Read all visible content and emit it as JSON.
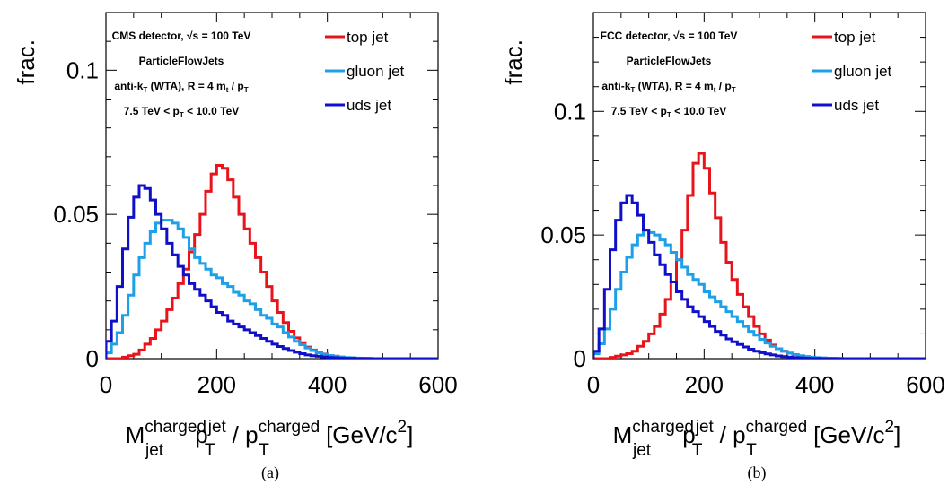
{
  "panels": [
    {
      "sublabel": "(a)",
      "info": {
        "line1_prefix": "CMS detector,  ",
        "sqrt": "√s",
        "line1_suffix": " = 100 TeV",
        "line2": "ParticleFlowJets",
        "line3_a": "anti-k",
        "line3_sub": "T",
        "line3_b": " (WTA), R = 4 m",
        "line3_sub2": "t",
        "line3_c": " / p",
        "line3_sub3": "T",
        "line4_a": "7.5 TeV < p",
        "line4_sub": "T",
        "line4_b": " < 10.0 TeV"
      }
    },
    {
      "sublabel": "(b)",
      "info": {
        "line1_prefix": "FCC detector,  ",
        "sqrt": "√s",
        "line1_suffix": " = 100 TeV",
        "line2": "ParticleFlowJets",
        "line3_a": "anti-k",
        "line3_sub": "T",
        "line3_b": " (WTA), R = 4 m",
        "line3_sub2": "t",
        "line3_c": " / p",
        "line3_sub3": "T",
        "line4_a": "7.5 TeV < p",
        "line4_sub": "T",
        "line4_b": " < 10.0 TeV"
      }
    }
  ],
  "xlabel": {
    "m": "M",
    "m_sup": "charged",
    "m_sub": "jet",
    "p": " p",
    "p_sup": "jet",
    "p_sub": "T",
    "slash": " / p",
    "p2_sup": "charged",
    "p2_sub": "T",
    "units_a": " [GeV/c",
    "units_sup": "2",
    "units_b": "]"
  },
  "colors": {
    "top": "#e8141c",
    "gluon": "#1ea0e8",
    "uds": "#1010c8"
  },
  "chart_data": [
    {
      "type": "line",
      "ylabel": "frac.",
      "xlim": [
        0,
        600
      ],
      "ylim": [
        0,
        0.12
      ],
      "xticks": [
        0,
        200,
        400,
        600
      ],
      "yticks": [
        0,
        0.05,
        0.1
      ],
      "ytick_labels": [
        "0",
        "0.05",
        "0.1"
      ],
      "legend_position": "top-right",
      "bin_width": 10,
      "series": [
        {
          "key": "top",
          "name": "top jet",
          "peak": 190,
          "values": [
            0,
            0,
            0,
            0.0005,
            0.001,
            0.0015,
            0.003,
            0.005,
            0.007,
            0.01,
            0.013,
            0.017,
            0.021,
            0.026,
            0.031,
            0.037,
            0.043,
            0.05,
            0.058,
            0.064,
            0.067,
            0.066,
            0.062,
            0.056,
            0.05,
            0.045,
            0.04,
            0.035,
            0.03,
            0.025,
            0.02,
            0.016,
            0.0125,
            0.0095,
            0.0072,
            0.0055,
            0.004,
            0.003,
            0.0022,
            0.0016,
            0.0011,
            0.0008,
            0.0005,
            0.0003,
            0.0002,
            0.0001,
            0.0001,
            0,
            0,
            0,
            0,
            0,
            0,
            0,
            0,
            0,
            0,
            0,
            0,
            0
          ]
        },
        {
          "key": "gluon",
          "name": "gluon jet",
          "peak": 110,
          "values": [
            0.002,
            0.005,
            0.009,
            0.015,
            0.022,
            0.029,
            0.035,
            0.04,
            0.044,
            0.047,
            0.048,
            0.048,
            0.047,
            0.045,
            0.042,
            0.038,
            0.035,
            0.033,
            0.031,
            0.029,
            0.028,
            0.026,
            0.025,
            0.023,
            0.022,
            0.02,
            0.019,
            0.017,
            0.015,
            0.014,
            0.012,
            0.011,
            0.009,
            0.0075,
            0.006,
            0.0048,
            0.0037,
            0.0028,
            0.002,
            0.0015,
            0.0011,
            0.0008,
            0.0006,
            0.0004,
            0.0003,
            0.0002,
            0.0001,
            0.0001,
            0,
            0,
            0,
            0,
            0,
            0,
            0,
            0,
            0,
            0,
            0,
            0
          ]
        },
        {
          "key": "uds",
          "name": "uds jet",
          "peak": 55,
          "values": [
            0.006,
            0.013,
            0.025,
            0.038,
            0.049,
            0.056,
            0.06,
            0.059,
            0.055,
            0.05,
            0.045,
            0.04,
            0.036,
            0.032,
            0.029,
            0.026,
            0.024,
            0.022,
            0.02,
            0.018,
            0.016,
            0.015,
            0.013,
            0.012,
            0.011,
            0.01,
            0.009,
            0.008,
            0.007,
            0.006,
            0.005,
            0.0042,
            0.0035,
            0.0028,
            0.0022,
            0.0017,
            0.0013,
            0.001,
            0.0008,
            0.0006,
            0.0004,
            0.0003,
            0.0002,
            0.0001,
            0.0001,
            0,
            0,
            0,
            0,
            0,
            0,
            0,
            0,
            0,
            0,
            0,
            0,
            0,
            0,
            0
          ]
        }
      ]
    },
    {
      "type": "line",
      "ylabel": "frac.",
      "xlim": [
        0,
        600
      ],
      "ylim": [
        0,
        0.14
      ],
      "xticks": [
        0,
        200,
        400,
        600
      ],
      "yticks": [
        0,
        0.05,
        0.1
      ],
      "ytick_labels": [
        "0",
        "0.05",
        "0.1"
      ],
      "legend_position": "top-right",
      "bin_width": 10,
      "series": [
        {
          "key": "top",
          "name": "top jet",
          "peak": 180,
          "values": [
            0,
            0,
            0,
            0.0005,
            0.001,
            0.0015,
            0.002,
            0.003,
            0.005,
            0.007,
            0.01,
            0.013,
            0.018,
            0.024,
            0.031,
            0.04,
            0.052,
            0.066,
            0.079,
            0.083,
            0.077,
            0.067,
            0.057,
            0.047,
            0.039,
            0.032,
            0.026,
            0.021,
            0.017,
            0.013,
            0.01,
            0.0075,
            0.0055,
            0.004,
            0.003,
            0.0022,
            0.0016,
            0.0011,
            0.0008,
            0.0005,
            0.0003,
            0.0002,
            0.0001,
            0.0001,
            0,
            0,
            0,
            0,
            0,
            0,
            0,
            0,
            0,
            0,
            0,
            0,
            0,
            0,
            0,
            0
          ]
        },
        {
          "key": "gluon",
          "name": "gluon jet",
          "peak": 90,
          "values": [
            0.002,
            0.006,
            0.012,
            0.02,
            0.028,
            0.035,
            0.041,
            0.046,
            0.05,
            0.052,
            0.051,
            0.05,
            0.048,
            0.046,
            0.043,
            0.04,
            0.037,
            0.034,
            0.032,
            0.03,
            0.027,
            0.025,
            0.023,
            0.021,
            0.019,
            0.017,
            0.015,
            0.013,
            0.011,
            0.0095,
            0.0078,
            0.0063,
            0.005,
            0.004,
            0.003,
            0.0022,
            0.0016,
            0.0012,
            0.0008,
            0.0006,
            0.0004,
            0.0003,
            0.0002,
            0.0001,
            0.0001,
            0,
            0,
            0,
            0,
            0,
            0,
            0,
            0,
            0,
            0,
            0,
            0,
            0,
            0,
            0
          ]
        },
        {
          "key": "uds",
          "name": "uds jet",
          "peak": 60,
          "values": [
            0.003,
            0.012,
            0.028,
            0.044,
            0.056,
            0.063,
            0.066,
            0.063,
            0.058,
            0.052,
            0.047,
            0.042,
            0.038,
            0.034,
            0.031,
            0.027,
            0.024,
            0.021,
            0.019,
            0.017,
            0.015,
            0.013,
            0.011,
            0.0095,
            0.008,
            0.0068,
            0.0057,
            0.0047,
            0.0038,
            0.003,
            0.0024,
            0.0019,
            0.0015,
            0.0011,
            0.0008,
            0.0006,
            0.0004,
            0.0003,
            0.0002,
            0.0001,
            0.0001,
            0,
            0,
            0,
            0,
            0,
            0,
            0,
            0,
            0,
            0,
            0,
            0,
            0,
            0,
            0,
            0,
            0,
            0,
            0
          ]
        }
      ]
    }
  ]
}
